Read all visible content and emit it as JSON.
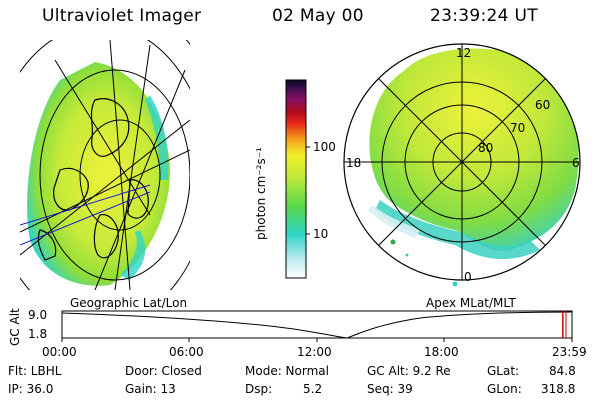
{
  "header": {
    "instrument": "Ultraviolet Imager",
    "date": "02 May 00",
    "time": "23:39:24 UT"
  },
  "colorbar": {
    "label": "photon cm⁻²s⁻¹",
    "ticks": [
      "100",
      "10"
    ]
  },
  "projections": {
    "left": "Geographic Lat/Lon",
    "right": "Apex MLat/MLT"
  },
  "polar_plot": {
    "mlt_labels": [
      "12",
      "18",
      "6",
      "0"
    ],
    "mlat_labels": [
      "60",
      "70",
      "80"
    ]
  },
  "timeline": {
    "axis_label": "GC Alt",
    "y_ticks": [
      "9.0",
      "1.8"
    ],
    "x_ticks": [
      "00:00",
      "06:00",
      "12:00",
      "18:00",
      "23:59"
    ],
    "marker_fraction": 0.982
  },
  "info": {
    "filter": "Flt: LBHL",
    "ip": "IP: 36.0",
    "door": "Door: Closed",
    "gain": "Gain: 13",
    "mode": "Mode: Normal",
    "dsp_label": "Dsp:",
    "dsp_value": "5.2",
    "gc_alt": "GC Alt: 9.2 Re",
    "seq": "Seq: 39",
    "glat": "GLat:",
    "glat_value": "84.8",
    "glon": "GLon:",
    "glon_value": "318.8"
  },
  "colors": {
    "aurora_low": "#2fd3c8",
    "aurora_mid": "#8ede3a",
    "aurora_high": "#eef23a",
    "marker": "#d40000"
  }
}
